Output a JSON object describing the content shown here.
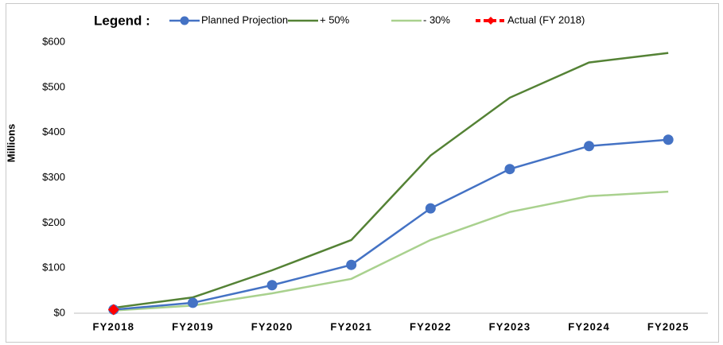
{
  "chart_data": {
    "type": "line",
    "legend_title": "Legend :",
    "y_label": "Millions",
    "categories": [
      "FY2018",
      "FY2019",
      "FY2020",
      "FY2021",
      "FY2022",
      "FY2023",
      "FY2024",
      "FY2025"
    ],
    "series": [
      {
        "name": "Planned Projection",
        "color": "#4472c4",
        "marker": "circle",
        "dashed": false,
        "values": [
          8,
          23,
          62,
          107,
          232,
          319,
          370,
          384
        ]
      },
      {
        "name": "+ 50%",
        "color": "#548235",
        "marker": "none",
        "dashed": false,
        "values": [
          12,
          35,
          95,
          162,
          349,
          477,
          555,
          576
        ]
      },
      {
        "name": "- 30%",
        "color": "#a9d18e",
        "marker": "none",
        "dashed": false,
        "values": [
          6,
          17,
          44,
          76,
          162,
          224,
          259,
          269
        ]
      },
      {
        "name": "Actual (FY 2018)",
        "color": "#ff0000",
        "marker": "diamond",
        "dashed": true,
        "values": [
          8,
          null,
          null,
          null,
          null,
          null,
          null,
          null
        ]
      }
    ],
    "ylim": [
      0,
      600
    ],
    "yticks": [
      {
        "value": 0,
        "label": "$0"
      },
      {
        "value": 100,
        "label": "$100"
      },
      {
        "value": 200,
        "label": "$200"
      },
      {
        "value": 300,
        "label": "$300"
      },
      {
        "value": 400,
        "label": "$400"
      },
      {
        "value": 500,
        "label": "$500"
      },
      {
        "value": 600,
        "label": "$600"
      }
    ],
    "grid": false
  }
}
